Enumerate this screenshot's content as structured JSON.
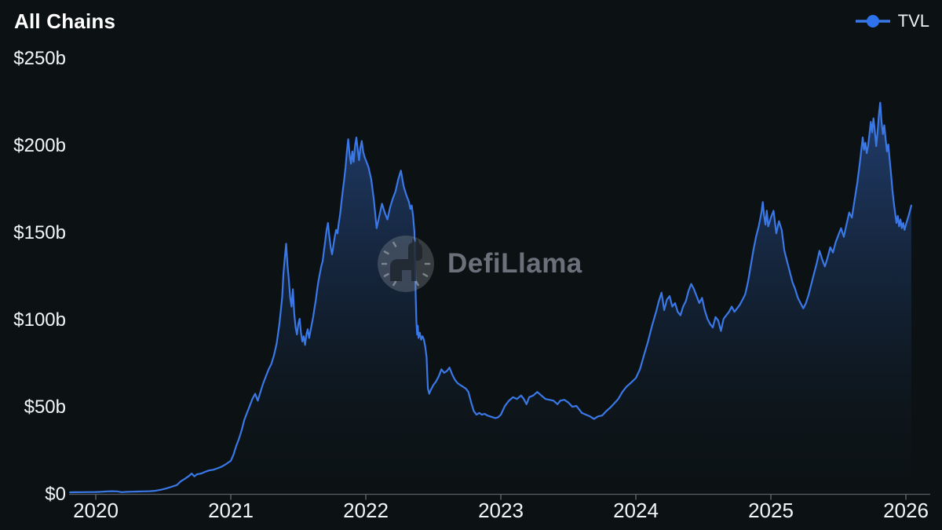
{
  "header": {
    "title": "All Chains"
  },
  "legend": {
    "items": [
      {
        "label": "TVL",
        "color": "#3a78e8"
      }
    ]
  },
  "watermark": {
    "text": "DefiLlama",
    "icon": "llama-clock-logo"
  },
  "colors": {
    "background": "#0c1213",
    "line": "#3a78e8",
    "legend_dot": "#2e72ec",
    "area_top": "rgba(60,115,221,0.46)",
    "area_mid": "rgba(36,72,136,0.28)",
    "area_bottom": "rgba(14,22,34,0.05)",
    "axis": "#575e66",
    "tick_label": "#f3f5f7",
    "title": "#ffffff",
    "watermark_gray": "#747a83"
  },
  "chart_data": {
    "type": "area",
    "title": "All Chains",
    "series": [
      {
        "name": "TVL",
        "unit": "$b"
      }
    ],
    "grid": false,
    "legend_position": "top-right",
    "xlabel": "",
    "ylabel": "",
    "ylim": [
      0,
      250
    ],
    "x_range": [
      2019.81,
      2026.05
    ],
    "y_ticks": [
      {
        "value": 0,
        "label": "$0"
      },
      {
        "value": 50,
        "label": "$50b"
      },
      {
        "value": 100,
        "label": "$100b"
      },
      {
        "value": 150,
        "label": "$150b"
      },
      {
        "value": 200,
        "label": "$200b"
      },
      {
        "value": 250,
        "label": "$250b"
      }
    ],
    "x_ticks": [
      {
        "value": 2020,
        "label": "2020"
      },
      {
        "value": 2021,
        "label": "2021"
      },
      {
        "value": 2022,
        "label": "2022"
      },
      {
        "value": 2023,
        "label": "2023"
      },
      {
        "value": 2024,
        "label": "2024"
      },
      {
        "value": 2025,
        "label": "2025"
      },
      {
        "value": 2026,
        "label": "2026"
      }
    ],
    "points": [
      [
        2019.81,
        0.45
      ],
      [
        2019.85,
        0.5
      ],
      [
        2019.9,
        0.55
      ],
      [
        2019.95,
        0.6
      ],
      [
        2020.0,
        0.62
      ],
      [
        2020.04,
        0.75
      ],
      [
        2020.08,
        0.95
      ],
      [
        2020.12,
        1.1
      ],
      [
        2020.16,
        1.0
      ],
      [
        2020.19,
        0.55
      ],
      [
        2020.23,
        0.7
      ],
      [
        2020.27,
        0.8
      ],
      [
        2020.31,
        0.9
      ],
      [
        2020.35,
        1.0
      ],
      [
        2020.4,
        1.1
      ],
      [
        2020.44,
        1.3
      ],
      [
        2020.48,
        1.9
      ],
      [
        2020.52,
        2.6
      ],
      [
        2020.56,
        3.6
      ],
      [
        2020.6,
        4.6
      ],
      [
        2020.63,
        6.8
      ],
      [
        2020.66,
        8.2
      ],
      [
        2020.69,
        9.8
      ],
      [
        2020.71,
        11.2
      ],
      [
        2020.73,
        9.6
      ],
      [
        2020.75,
        10.8
      ],
      [
        2020.78,
        11.2
      ],
      [
        2020.81,
        12.2
      ],
      [
        2020.84,
        13.0
      ],
      [
        2020.87,
        13.4
      ],
      [
        2020.9,
        14.2
      ],
      [
        2020.93,
        15.1
      ],
      [
        2020.96,
        16.4
      ],
      [
        2021.0,
        18.5
      ],
      [
        2021.02,
        22
      ],
      [
        2021.04,
        27
      ],
      [
        2021.06,
        31
      ],
      [
        2021.08,
        36
      ],
      [
        2021.1,
        42
      ],
      [
        2021.12,
        46
      ],
      [
        2021.14,
        50
      ],
      [
        2021.16,
        54
      ],
      [
        2021.18,
        57
      ],
      [
        2021.2,
        53
      ],
      [
        2021.22,
        58
      ],
      [
        2021.24,
        63
      ],
      [
        2021.26,
        67
      ],
      [
        2021.28,
        71
      ],
      [
        2021.3,
        74
      ],
      [
        2021.32,
        79
      ],
      [
        2021.34,
        86
      ],
      [
        2021.36,
        97
      ],
      [
        2021.38,
        112
      ],
      [
        2021.39,
        126
      ],
      [
        2021.4,
        135
      ],
      [
        2021.41,
        143
      ],
      [
        2021.42,
        131
      ],
      [
        2021.43,
        122
      ],
      [
        2021.44,
        112
      ],
      [
        2021.45,
        107
      ],
      [
        2021.46,
        117
      ],
      [
        2021.47,
        103
      ],
      [
        2021.48,
        95
      ],
      [
        2021.49,
        91
      ],
      [
        2021.5,
        97
      ],
      [
        2021.51,
        100
      ],
      [
        2021.52,
        92
      ],
      [
        2021.53,
        87
      ],
      [
        2021.54,
        90
      ],
      [
        2021.55,
        85
      ],
      [
        2021.56,
        91
      ],
      [
        2021.57,
        94
      ],
      [
        2021.58,
        89
      ],
      [
        2021.59,
        93
      ],
      [
        2021.6,
        97
      ],
      [
        2021.61,
        101
      ],
      [
        2021.62,
        106
      ],
      [
        2021.63,
        111
      ],
      [
        2021.64,
        117
      ],
      [
        2021.65,
        122
      ],
      [
        2021.66,
        126
      ],
      [
        2021.67,
        130
      ],
      [
        2021.68,
        133
      ],
      [
        2021.69,
        139
      ],
      [
        2021.7,
        145
      ],
      [
        2021.71,
        151
      ],
      [
        2021.72,
        155
      ],
      [
        2021.73,
        147
      ],
      [
        2021.74,
        141
      ],
      [
        2021.75,
        137
      ],
      [
        2021.76,
        142
      ],
      [
        2021.77,
        147
      ],
      [
        2021.78,
        151
      ],
      [
        2021.79,
        149
      ],
      [
        2021.8,
        155
      ],
      [
        2021.81,
        160
      ],
      [
        2021.82,
        167
      ],
      [
        2021.83,
        174
      ],
      [
        2021.84,
        180
      ],
      [
        2021.85,
        187
      ],
      [
        2021.86,
        196
      ],
      [
        2021.87,
        203
      ],
      [
        2021.88,
        194
      ],
      [
        2021.89,
        189
      ],
      [
        2021.9,
        196
      ],
      [
        2021.91,
        190
      ],
      [
        2021.92,
        199
      ],
      [
        2021.93,
        204
      ],
      [
        2021.94,
        197
      ],
      [
        2021.95,
        191
      ],
      [
        2021.96,
        198
      ],
      [
        2021.97,
        202
      ],
      [
        2021.98,
        196
      ],
      [
        2021.99,
        193
      ],
      [
        2022.0,
        191
      ],
      [
        2022.02,
        187
      ],
      [
        2022.04,
        180
      ],
      [
        2022.06,
        168
      ],
      [
        2022.08,
        152
      ],
      [
        2022.1,
        159
      ],
      [
        2022.12,
        166
      ],
      [
        2022.14,
        161
      ],
      [
        2022.16,
        157
      ],
      [
        2022.18,
        164
      ],
      [
        2022.2,
        169
      ],
      [
        2022.22,
        173
      ],
      [
        2022.24,
        180
      ],
      [
        2022.26,
        185
      ],
      [
        2022.28,
        176
      ],
      [
        2022.3,
        171
      ],
      [
        2022.32,
        167
      ],
      [
        2022.33,
        163
      ],
      [
        2022.34,
        165
      ],
      [
        2022.35,
        159
      ],
      [
        2022.36,
        150
      ],
      [
        2022.365,
        132
      ],
      [
        2022.37,
        112
      ],
      [
        2022.375,
        98
      ],
      [
        2022.38,
        91
      ],
      [
        2022.385,
        96
      ],
      [
        2022.39,
        89
      ],
      [
        2022.4,
        92
      ],
      [
        2022.41,
        88
      ],
      [
        2022.42,
        90
      ],
      [
        2022.43,
        88
      ],
      [
        2022.44,
        84
      ],
      [
        2022.45,
        78
      ],
      [
        2022.455,
        68
      ],
      [
        2022.46,
        60
      ],
      [
        2022.47,
        57
      ],
      [
        2022.48,
        59
      ],
      [
        2022.5,
        62
      ],
      [
        2022.52,
        64
      ],
      [
        2022.54,
        67
      ],
      [
        2022.56,
        71
      ],
      [
        2022.58,
        69
      ],
      [
        2022.6,
        70
      ],
      [
        2022.62,
        72
      ],
      [
        2022.64,
        68
      ],
      [
        2022.66,
        65
      ],
      [
        2022.68,
        63
      ],
      [
        2022.7,
        62
      ],
      [
        2022.72,
        61
      ],
      [
        2022.74,
        60
      ],
      [
        2022.76,
        58
      ],
      [
        2022.78,
        52
      ],
      [
        2022.8,
        47
      ],
      [
        2022.82,
        45
      ],
      [
        2022.84,
        46
      ],
      [
        2022.86,
        45
      ],
      [
        2022.88,
        45.5
      ],
      [
        2022.9,
        44.5
      ],
      [
        2022.92,
        44
      ],
      [
        2022.94,
        43.5
      ],
      [
        2022.96,
        43
      ],
      [
        2022.98,
        43.5
      ],
      [
        2023.0,
        45
      ],
      [
        2023.03,
        50
      ],
      [
        2023.06,
        53
      ],
      [
        2023.09,
        55
      ],
      [
        2023.12,
        54
      ],
      [
        2023.15,
        56
      ],
      [
        2023.17,
        54
      ],
      [
        2023.19,
        51
      ],
      [
        2023.21,
        55
      ],
      [
        2023.24,
        56
      ],
      [
        2023.27,
        58
      ],
      [
        2023.3,
        56
      ],
      [
        2023.33,
        54
      ],
      [
        2023.36,
        53.5
      ],
      [
        2023.39,
        53
      ],
      [
        2023.42,
        51
      ],
      [
        2023.44,
        53
      ],
      [
        2023.47,
        53.5
      ],
      [
        2023.5,
        52
      ],
      [
        2023.53,
        49.5
      ],
      [
        2023.56,
        50
      ],
      [
        2023.58,
        48
      ],
      [
        2023.6,
        46
      ],
      [
        2023.63,
        45
      ],
      [
        2023.66,
        44
      ],
      [
        2023.69,
        42.5
      ],
      [
        2023.72,
        44
      ],
      [
        2023.75,
        44.5
      ],
      [
        2023.78,
        47
      ],
      [
        2023.81,
        49
      ],
      [
        2023.84,
        51.5
      ],
      [
        2023.87,
        54
      ],
      [
        2023.9,
        58
      ],
      [
        2023.93,
        61
      ],
      [
        2023.96,
        63
      ],
      [
        2024.0,
        66
      ],
      [
        2024.03,
        71
      ],
      [
        2024.06,
        79
      ],
      [
        2024.09,
        87
      ],
      [
        2024.12,
        96
      ],
      [
        2024.15,
        104
      ],
      [
        2024.17,
        110
      ],
      [
        2024.19,
        115
      ],
      [
        2024.21,
        105
      ],
      [
        2024.23,
        111
      ],
      [
        2024.25,
        113
      ],
      [
        2024.27,
        107
      ],
      [
        2024.29,
        109
      ],
      [
        2024.31,
        104
      ],
      [
        2024.33,
        102
      ],
      [
        2024.35,
        107
      ],
      [
        2024.37,
        110
      ],
      [
        2024.39,
        116
      ],
      [
        2024.41,
        120
      ],
      [
        2024.43,
        117
      ],
      [
        2024.45,
        113
      ],
      [
        2024.47,
        109
      ],
      [
        2024.49,
        112
      ],
      [
        2024.51,
        105
      ],
      [
        2024.53,
        100
      ],
      [
        2024.55,
        97
      ],
      [
        2024.57,
        95
      ],
      [
        2024.59,
        101
      ],
      [
        2024.61,
        99
      ],
      [
        2024.63,
        93
      ],
      [
        2024.65,
        100
      ],
      [
        2024.67,
        102
      ],
      [
        2024.69,
        104
      ],
      [
        2024.71,
        107
      ],
      [
        2024.73,
        104
      ],
      [
        2024.75,
        106
      ],
      [
        2024.77,
        108
      ],
      [
        2024.79,
        111
      ],
      [
        2024.81,
        114
      ],
      [
        2024.83,
        121
      ],
      [
        2024.85,
        130
      ],
      [
        2024.87,
        139
      ],
      [
        2024.89,
        147
      ],
      [
        2024.91,
        153
      ],
      [
        2024.93,
        161
      ],
      [
        2024.94,
        167
      ],
      [
        2024.95,
        159
      ],
      [
        2024.96,
        154
      ],
      [
        2024.97,
        162
      ],
      [
        2024.98,
        153
      ],
      [
        2025.0,
        158
      ],
      [
        2025.02,
        162
      ],
      [
        2025.04,
        149
      ],
      [
        2025.06,
        156
      ],
      [
        2025.08,
        151
      ],
      [
        2025.1,
        139
      ],
      [
        2025.12,
        133
      ],
      [
        2025.14,
        127
      ],
      [
        2025.16,
        121
      ],
      [
        2025.18,
        117
      ],
      [
        2025.2,
        112
      ],
      [
        2025.22,
        109
      ],
      [
        2025.24,
        106
      ],
      [
        2025.26,
        109
      ],
      [
        2025.28,
        114
      ],
      [
        2025.3,
        120
      ],
      [
        2025.32,
        126
      ],
      [
        2025.34,
        132
      ],
      [
        2025.36,
        139
      ],
      [
        2025.38,
        134
      ],
      [
        2025.4,
        130
      ],
      [
        2025.42,
        135
      ],
      [
        2025.44,
        141
      ],
      [
        2025.46,
        138
      ],
      [
        2025.48,
        144
      ],
      [
        2025.5,
        148
      ],
      [
        2025.52,
        152
      ],
      [
        2025.54,
        147
      ],
      [
        2025.56,
        154
      ],
      [
        2025.58,
        161
      ],
      [
        2025.6,
        158
      ],
      [
        2025.62,
        168
      ],
      [
        2025.64,
        178
      ],
      [
        2025.66,
        190
      ],
      [
        2025.68,
        204
      ],
      [
        2025.69,
        197
      ],
      [
        2025.7,
        201
      ],
      [
        2025.71,
        195
      ],
      [
        2025.72,
        199
      ],
      [
        2025.73,
        206
      ],
      [
        2025.74,
        213
      ],
      [
        2025.75,
        207
      ],
      [
        2025.76,
        215
      ],
      [
        2025.77,
        208
      ],
      [
        2025.78,
        199
      ],
      [
        2025.79,
        207
      ],
      [
        2025.8,
        217
      ],
      [
        2025.81,
        224
      ],
      [
        2025.82,
        213
      ],
      [
        2025.83,
        206
      ],
      [
        2025.84,
        211
      ],
      [
        2025.85,
        203
      ],
      [
        2025.86,
        196
      ],
      [
        2025.87,
        200
      ],
      [
        2025.88,
        191
      ],
      [
        2025.89,
        183
      ],
      [
        2025.9,
        174
      ],
      [
        2025.91,
        167
      ],
      [
        2025.92,
        161
      ],
      [
        2025.93,
        155
      ],
      [
        2025.94,
        159
      ],
      [
        2025.95,
        153
      ],
      [
        2025.96,
        157
      ],
      [
        2025.97,
        152
      ],
      [
        2025.98,
        155
      ],
      [
        2025.99,
        151
      ],
      [
        2026.0,
        154
      ],
      [
        2026.02,
        159
      ],
      [
        2026.04,
        165
      ]
    ]
  }
}
